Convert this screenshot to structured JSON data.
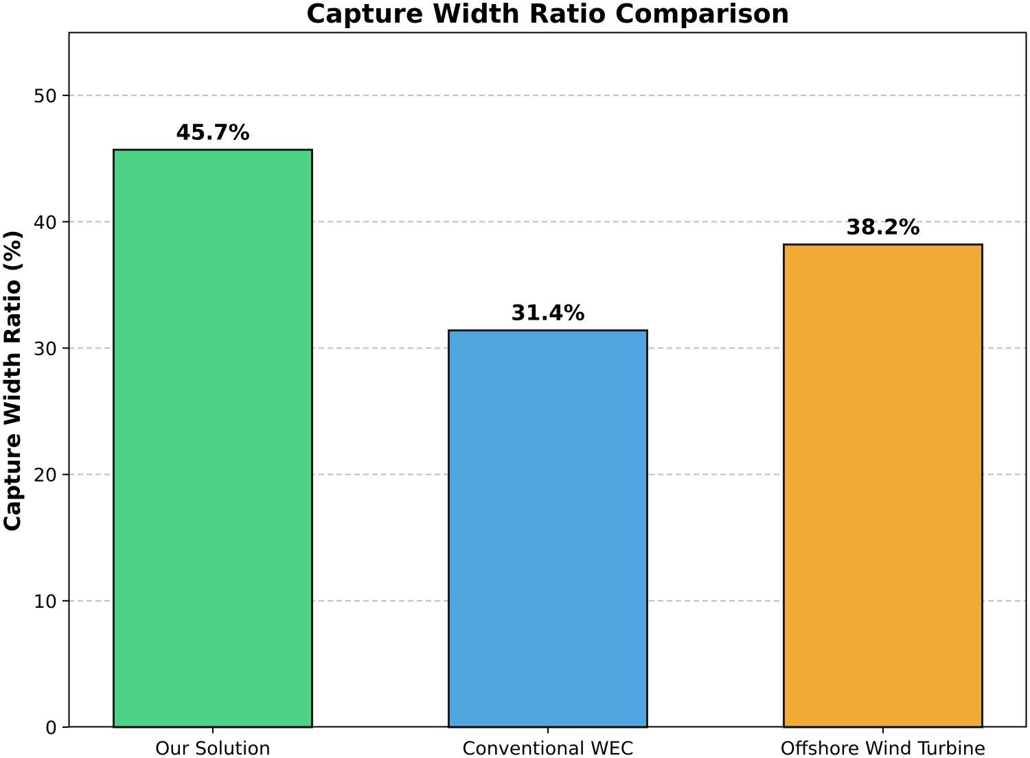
{
  "chart_data": {
    "type": "bar",
    "title": "Capture Width Ratio Comparison",
    "xlabel": "",
    "ylabel": "Capture Width Ratio (%)",
    "categories": [
      "Our Solution",
      "Conventional WEC",
      "Offshore Wind Turbine"
    ],
    "values": [
      45.7,
      31.4,
      38.2
    ],
    "data_labels": [
      "45.7%",
      "31.4%",
      "38.2%"
    ],
    "bar_colors": [
      "#4ed386",
      "#52a6df",
      "#f2aa37"
    ],
    "bar_edge_color": "#1a1a1a",
    "ylim": [
      0,
      55
    ],
    "yticks": [
      0,
      10,
      20,
      30,
      40,
      50
    ],
    "ytick_labels": [
      "0",
      "10",
      "20",
      "30",
      "40",
      "50"
    ],
    "grid": "horizontal-dashed",
    "grid_color": "#bfbfbf",
    "legend": "none"
  }
}
